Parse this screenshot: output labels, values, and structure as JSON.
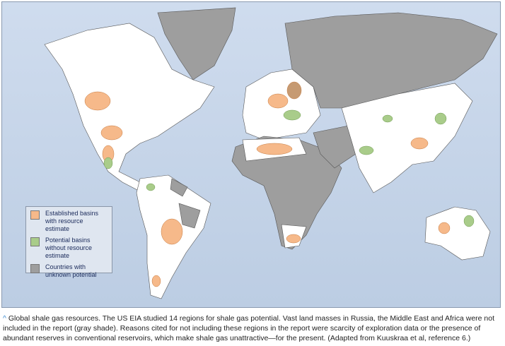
{
  "colors": {
    "established": "#f6b98a",
    "potential": "#a9cc8a",
    "unknown": "#9e9e9e",
    "land": "#ffffff",
    "ocean": "#c5d4e8"
  },
  "legend": {
    "items": [
      {
        "label": "Established basins with resource estimate",
        "color": "#f6b98a"
      },
      {
        "label": "Potential basins without resource estimate",
        "color": "#a9cc8a"
      },
      {
        "label": "Countries with unknown potential",
        "color": "#9e9e9e"
      }
    ]
  },
  "caption": {
    "marker": "^",
    "text": "Global shale gas resources. The US EIA studied 14 regions for shale gas potential. Vast land masses in Russia, the Middle East and Africa were not included in the report (gray shade). Reasons cited for not including these regions in the report were scarcity of exploration data or the presence of abundant reserves in conventional reservoirs, which make shale gas unattractive—for the present. (Adapted from Kuuskraa et al, reference 6.)"
  }
}
